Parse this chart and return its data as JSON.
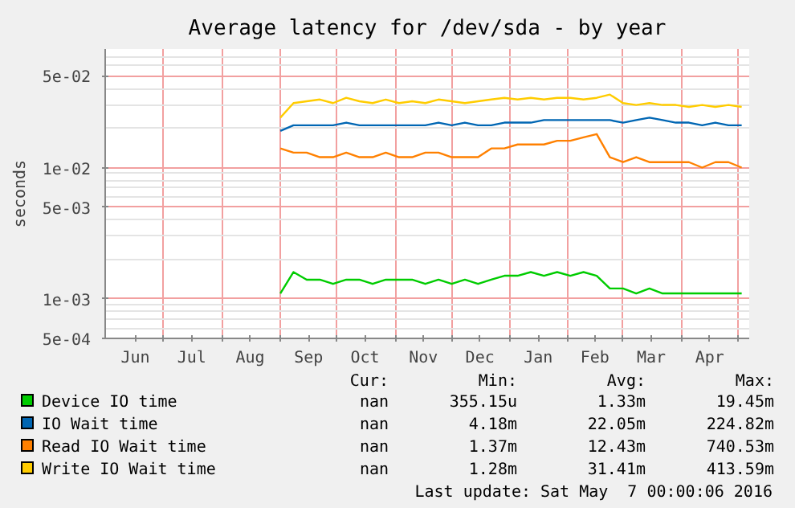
{
  "chart_data": {
    "type": "line",
    "title": "Average latency for /dev/sda - by year",
    "ylabel": "seconds",
    "log": "y",
    "grid": true,
    "legend": "bottom",
    "xlim": [
      "2015-05-31",
      "2016-05-07"
    ],
    "xticks": [
      {
        "value": "2015-06-16",
        "label": "Jun"
      },
      {
        "value": "2015-07-01",
        "label": null
      },
      {
        "value": "2015-07-16",
        "label": "Jul"
      },
      {
        "value": "2015-08-01",
        "label": null
      },
      {
        "value": "2015-08-16",
        "label": "Aug"
      },
      {
        "value": "2015-09-01",
        "label": null
      },
      {
        "value": "2015-09-16",
        "label": "Sep"
      },
      {
        "value": "2015-10-01",
        "label": null
      },
      {
        "value": "2015-10-16",
        "label": "Oct"
      },
      {
        "value": "2015-11-01",
        "label": null
      },
      {
        "value": "2015-11-16",
        "label": "Nov"
      },
      {
        "value": "2015-12-01",
        "label": null
      },
      {
        "value": "2015-12-16",
        "label": "Dec"
      },
      {
        "value": "2016-01-01",
        "label": null
      },
      {
        "value": "2016-01-16",
        "label": "Jan"
      },
      {
        "value": "2016-02-01",
        "label": null
      },
      {
        "value": "2016-02-15",
        "label": "Feb"
      },
      {
        "value": "2016-03-01",
        "label": null
      },
      {
        "value": "2016-03-16",
        "label": "Mar"
      },
      {
        "value": "2016-04-01",
        "label": null
      },
      {
        "value": "2016-04-16",
        "label": "Apr"
      },
      {
        "value": "2016-05-01",
        "label": null
      }
    ],
    "ylim": [
      0.0005,
      0.08
    ],
    "yticks": [
      {
        "value": 0.0005,
        "label": "5e-04"
      },
      {
        "value": 0.001,
        "label": "1e-03"
      },
      {
        "value": 0.005,
        "label": "5e-03"
      },
      {
        "value": 0.01,
        "label": "1e-02"
      },
      {
        "value": 0.05,
        "label": "5e-02"
      }
    ],
    "x": [
      "2015-09-01",
      "2015-09-08",
      "2015-09-15",
      "2015-09-22",
      "2015-09-29",
      "2015-10-06",
      "2015-10-13",
      "2015-10-20",
      "2015-10-27",
      "2015-11-03",
      "2015-11-10",
      "2015-11-17",
      "2015-11-24",
      "2015-12-01",
      "2015-12-08",
      "2015-12-15",
      "2015-12-22",
      "2015-12-29",
      "2016-01-05",
      "2016-01-12",
      "2016-01-19",
      "2016-01-26",
      "2016-02-02",
      "2016-02-09",
      "2016-02-16",
      "2016-02-23",
      "2016-03-01",
      "2016-03-08",
      "2016-03-15",
      "2016-03-22",
      "2016-03-29",
      "2016-04-05",
      "2016-04-12",
      "2016-04-19",
      "2016-04-26",
      "2016-05-03"
    ],
    "series": [
      {
        "name": "Device IO time",
        "color": "#00cc00",
        "values": [
          0.0011,
          0.0016,
          0.0014,
          0.0014,
          0.0013,
          0.0014,
          0.0014,
          0.0013,
          0.0014,
          0.0014,
          0.0014,
          0.0013,
          0.0014,
          0.0013,
          0.0014,
          0.0013,
          0.0014,
          0.0015,
          0.0015,
          0.0016,
          0.0015,
          0.0016,
          0.0015,
          0.0016,
          0.0015,
          0.0012,
          0.0012,
          0.0011,
          0.0012,
          0.0011,
          0.0011,
          0.0011,
          0.0011,
          0.0011,
          0.0011,
          0.0011
        ]
      },
      {
        "name": "IO Wait time",
        "color": "#0066b3",
        "values": [
          0.019,
          0.021,
          0.021,
          0.021,
          0.021,
          0.022,
          0.021,
          0.021,
          0.021,
          0.021,
          0.021,
          0.021,
          0.022,
          0.021,
          0.022,
          0.021,
          0.021,
          0.022,
          0.022,
          0.022,
          0.023,
          0.023,
          0.023,
          0.023,
          0.023,
          0.023,
          0.022,
          0.023,
          0.024,
          0.023,
          0.022,
          0.022,
          0.021,
          0.022,
          0.021,
          0.021
        ]
      },
      {
        "name": "Read IO Wait time",
        "color": "#ff8000",
        "values": [
          0.014,
          0.013,
          0.013,
          0.012,
          0.012,
          0.013,
          0.012,
          0.012,
          0.013,
          0.012,
          0.012,
          0.013,
          0.013,
          0.012,
          0.012,
          0.012,
          0.014,
          0.014,
          0.015,
          0.015,
          0.015,
          0.016,
          0.016,
          0.017,
          0.018,
          0.012,
          0.011,
          0.012,
          0.011,
          0.011,
          0.011,
          0.011,
          0.01,
          0.011,
          0.011,
          0.01
        ]
      },
      {
        "name": "Write IO Wait time",
        "color": "#ffcc00",
        "values": [
          0.024,
          0.031,
          0.032,
          0.033,
          0.031,
          0.034,
          0.032,
          0.031,
          0.033,
          0.031,
          0.032,
          0.031,
          0.033,
          0.032,
          0.031,
          0.032,
          0.033,
          0.034,
          0.033,
          0.034,
          0.033,
          0.034,
          0.034,
          0.033,
          0.034,
          0.036,
          0.031,
          0.03,
          0.031,
          0.03,
          0.03,
          0.029,
          0.03,
          0.029,
          0.03,
          0.029
        ]
      }
    ],
    "annotations": [
      "Cur:",
      "Min:",
      "Avg:",
      "Max:",
      "nan",
      "355.15u",
      "1.33m",
      "19.45m",
      "nan",
      "4.18m",
      "22.05m",
      "224.82m",
      "nan",
      "1.37m",
      "12.43m",
      "740.53m",
      "nan",
      "1.28m",
      "31.41m",
      "413.59m",
      "Last update: Sat May  7 00:00:06 2016"
    ]
  }
}
